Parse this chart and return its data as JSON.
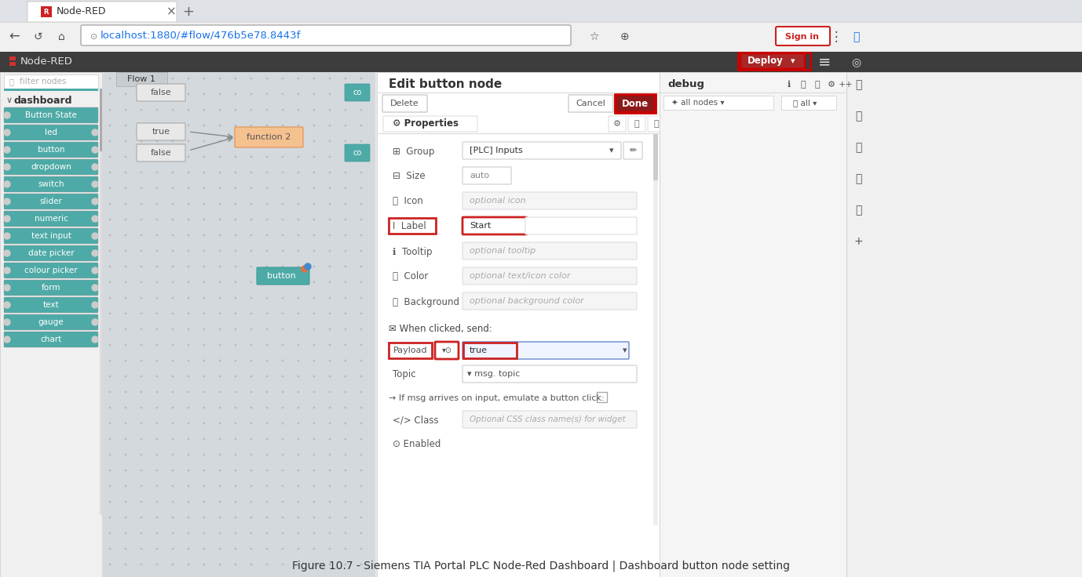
{
  "title": "Figure 10.7 - Siemens TIA Portal PLC Node-Red Dashboard | Dashboard button node setting",
  "bg_browser": "#e8e8e8",
  "bg_tab_bar": "#dee1e6",
  "bg_active_tab": "#ffffff",
  "bg_nodered_bar": "#3d3d3d",
  "bg_left_panel": "#f0f0f0",
  "bg_main_flow": "#d4d9dd",
  "bg_edit_panel": "#ffffff",
  "bg_right_panel": "#f5f5f5",
  "teal_color": "#4eaaa7",
  "teal_dark": "#3d9b99",
  "red_dark": "#8b1a1a",
  "url_text": "localhost:1880/#flow/476b5e78.8443f",
  "tab_title": "Node-RED",
  "left_panel_nodes": [
    "Button State",
    "led",
    "button",
    "dropdown",
    "switch",
    "slider",
    "numeric",
    "text input",
    "date picker",
    "colour picker",
    "form",
    "text",
    "gauge",
    "chart"
  ],
  "edit_panel_title": "Edit button node",
  "properties_fields": [
    {
      "label": "Group",
      "value": "[PLC] Inputs",
      "type": "dropdown"
    },
    {
      "label": "Size",
      "value": "auto",
      "type": "small_input"
    },
    {
      "label": "Icon",
      "value": "optional icon",
      "type": "placeholder"
    },
    {
      "label": "Label",
      "value": "Start",
      "type": "input",
      "highlighted": true
    },
    {
      "label": "Tooltip",
      "value": "optional tooltip",
      "type": "placeholder"
    },
    {
      "label": "Color",
      "value": "optional text/icon color",
      "type": "placeholder"
    },
    {
      "label": "Background",
      "value": "optional background color",
      "type": "placeholder"
    },
    {
      "label": "When clicked, send:",
      "value": "",
      "type": "section"
    },
    {
      "label": "Payload",
      "value": "true",
      "type": "payload",
      "highlighted": true
    }
  ]
}
